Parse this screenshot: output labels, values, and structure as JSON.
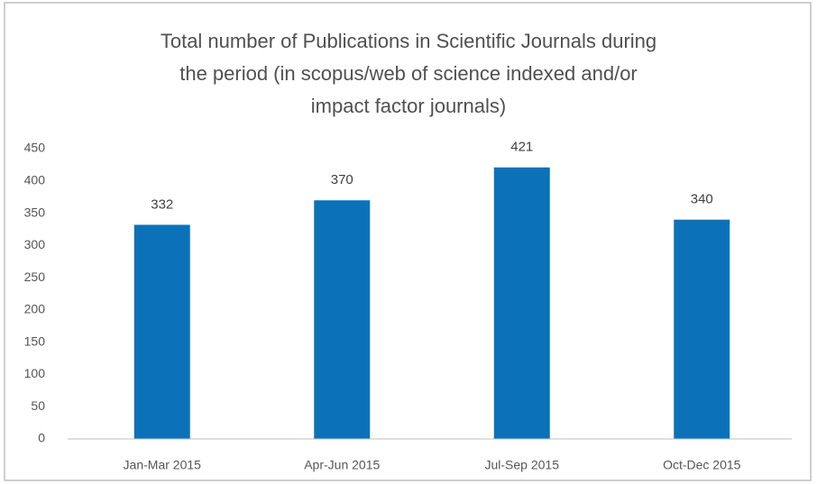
{
  "chart_data": {
    "type": "bar",
    "title": [
      "Total number  of Publications in Scientific Journals during",
      "the period (in scopus/web of science indexed and/or",
      "impact factor journals)"
    ],
    "categories": [
      "Jan-Mar 2015",
      "Apr-Jun 2015",
      "Jul-Sep 2015",
      "Oct-Dec 2015"
    ],
    "values": [
      332,
      370,
      421,
      340
    ],
    "color": "#0b72b9",
    "ylim": [
      0,
      450
    ],
    "yticks": [
      0,
      50,
      100,
      150,
      200,
      250,
      300,
      350,
      400,
      450
    ],
    "grid": false
  }
}
